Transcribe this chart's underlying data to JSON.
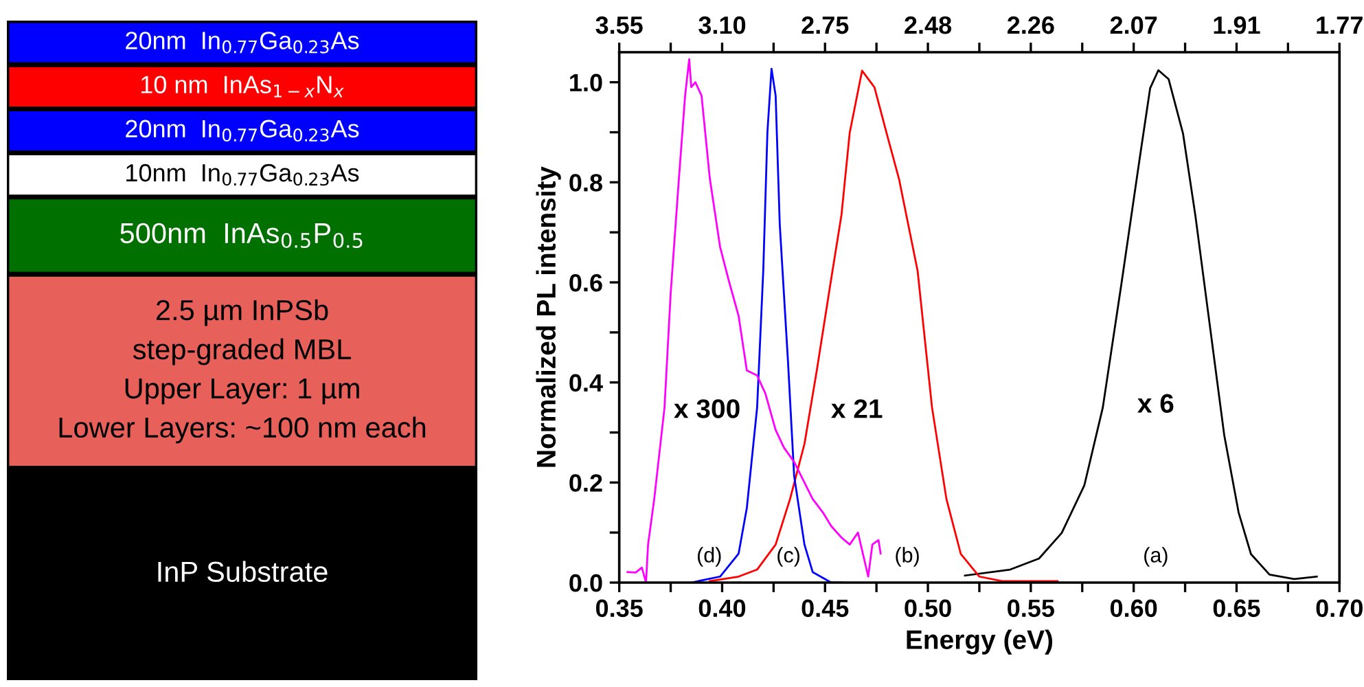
{
  "chart_data": [
    {
      "type": "other",
      "annotations": [
        "20nm  In$_{0.77}$Ga$_{0.23}$As",
        "10 nm  InAs$_{1−x}$N$_{x}$",
        "20nm  In$_{0.77}$Ga$_{0.23}$As",
        "10nm  In$_{0.77}$Ga$_{0.23}$As",
        "500nm  InAs$_{0.5}$P$_{0.5}$",
        "2.5 µm InPSb\nstep-graded MBL\nUpper Layer: 1 µm\nLower Layers: ~100 nm each",
        "InP Substrate"
      ],
      "colors": [
        "#0000ff",
        "#ff0000",
        "#0000ff",
        "#ffffff",
        "#007000",
        "#e8605a",
        "#000000"
      ]
    },
    {
      "type": "line",
      "xlabel": "Energy (eV)",
      "ylabel": "Normalized PL intensity",
      "xlim": [
        0.35,
        0.7
      ],
      "ylim": [
        0,
        1.06
      ],
      "xticks": [
        {
          "value": 0.35,
          "label": "0.35"
        },
        {
          "value": 0.375,
          "label": null
        },
        {
          "value": 0.4,
          "label": "0.40"
        },
        {
          "value": 0.425,
          "label": null
        },
        {
          "value": 0.45,
          "label": "0.45"
        },
        {
          "value": 0.475,
          "label": null
        },
        {
          "value": 0.5,
          "label": "0.50"
        },
        {
          "value": 0.525,
          "label": null
        },
        {
          "value": 0.55,
          "label": "0.55"
        },
        {
          "value": 0.575,
          "label": null
        },
        {
          "value": 0.6,
          "label": "0.60"
        },
        {
          "value": 0.625,
          "label": null
        },
        {
          "value": 0.65,
          "label": "0.65"
        },
        {
          "value": 0.675,
          "label": null
        },
        {
          "value": 0.7,
          "label": "0.70"
        }
      ],
      "yticks": [
        {
          "value": 0,
          "label": "0.0"
        },
        {
          "value": 0.1,
          "label": null
        },
        {
          "value": 0.2,
          "label": "0.2"
        },
        {
          "value": 0.3,
          "label": null
        },
        {
          "value": 0.4,
          "label": "0.4"
        },
        {
          "value": 0.5,
          "label": null
        },
        {
          "value": 0.6,
          "label": "0.6"
        },
        {
          "value": 0.7,
          "label": null
        },
        {
          "value": 0.8,
          "label": "0.8"
        },
        {
          "value": 0.9,
          "label": null
        },
        {
          "value": 1.0,
          "label": "1.0"
        }
      ],
      "grid": false,
      "marker": "none",
      "line_style": "solid",
      "series": [
        {
          "color": "#000000",
          "x": [
            0.518,
            0.54,
            0.554,
            0.565,
            0.576,
            0.585,
            0.594,
            0.603,
            0.608,
            0.612,
            0.617,
            0.624,
            0.63,
            0.637,
            0.644,
            0.651,
            0.657,
            0.666,
            0.678,
            0.689
          ],
          "values": [
            0.014,
            0.026,
            0.048,
            0.099,
            0.194,
            0.35,
            0.596,
            0.85,
            0.988,
            1.024,
            1.006,
            0.897,
            0.733,
            0.514,
            0.295,
            0.14,
            0.057,
            0.016,
            0.007,
            0.012
          ]
        },
        {
          "color": "#ff0000",
          "x": [
            0.394,
            0.408,
            0.417,
            0.426,
            0.433,
            0.44,
            0.446,
            0.453,
            0.458,
            0.462,
            0.468,
            0.474,
            0.48,
            0.486,
            0.495,
            0.502,
            0.509,
            0.516,
            0.525,
            0.536,
            0.563
          ],
          "values": [
            0.003,
            0.012,
            0.026,
            0.076,
            0.167,
            0.277,
            0.424,
            0.607,
            0.735,
            0.899,
            1.023,
            0.99,
            0.897,
            0.806,
            0.623,
            0.35,
            0.167,
            0.057,
            0.012,
            0.003,
            0.003
          ]
        },
        {
          "color": "#0000ff",
          "x": [
            0.385,
            0.399,
            0.408,
            0.412,
            0.417,
            0.42,
            0.422,
            0.424,
            0.426,
            0.428,
            0.432,
            0.435,
            0.44,
            0.444,
            0.453,
            0.458
          ],
          "values": [
            0,
            0.012,
            0.058,
            0.149,
            0.35,
            0.625,
            0.9,
            1.027,
            0.973,
            0.716,
            0.442,
            0.213,
            0.076,
            0.021,
            0,
            0
          ]
        },
        {
          "color": "#ff00ff",
          "x": [
            0.354,
            0.358,
            0.361,
            0.363,
            0.364,
            0.367,
            0.372,
            0.375,
            0.379,
            0.382,
            0.384,
            0.385,
            0.387,
            0.39,
            0.394,
            0.399,
            0.403,
            0.408,
            0.412,
            0.417,
            0.421,
            0.426,
            0.43,
            0.435,
            0.44,
            0.444,
            0.449,
            0.453,
            0.458,
            0.462,
            0.466,
            0.471,
            0.473,
            0.476,
            0.477
          ],
          "values": [
            0.021,
            0.02,
            0.03,
            0.0,
            0.076,
            0.167,
            0.35,
            0.579,
            0.808,
            0.973,
            1.046,
            0.99,
            1.0,
            0.973,
            0.808,
            0.671,
            0.607,
            0.533,
            0.424,
            0.414,
            0.378,
            0.305,
            0.27,
            0.241,
            0.2,
            0.167,
            0.14,
            0.113,
            0.09,
            0.076,
            0.1,
            0.012,
            0.076,
            0.085,
            0.058
          ]
        }
      ],
      "annotations": [
        "x 300",
        "x 21",
        "x 6",
        "(d)",
        "(c)",
        "(b)",
        "(a)",
        "3.55",
        "3.10",
        "2.75",
        "2.48",
        "2.26",
        "2.07",
        "1.91",
        "1.77"
      ]
    }
  ]
}
